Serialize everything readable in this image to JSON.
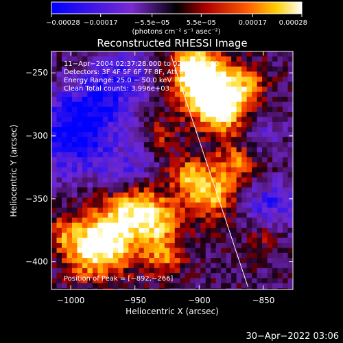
{
  "chart_data": {
    "type": "heatmap",
    "title": "Reconstructed RHESSI Image",
    "xlabel": "Heliocentric X (arcsec)",
    "ylabel": "Heliocentric Y (arcsec)",
    "xlim": [
      -1015,
      -827
    ],
    "ylim": [
      -422,
      -233
    ],
    "x_ticks": [
      {
        "value": -1000,
        "label": "−1000"
      },
      {
        "value": -950,
        "label": "−950"
      },
      {
        "value": -900,
        "label": "−900"
      },
      {
        "value": -850,
        "label": "−850"
      }
    ],
    "y_ticks": [
      {
        "value": -250,
        "label": "−250"
      },
      {
        "value": -300,
        "label": "−300"
      },
      {
        "value": -350,
        "label": "−350"
      },
      {
        "value": -400,
        "label": "−400"
      }
    ],
    "colorbar": {
      "range": [
        -0.00028,
        0.00028
      ],
      "ticks": [
        {
          "value": -0.00028,
          "label": "−0.00028"
        },
        {
          "value": -0.00017,
          "label": "−0.00017"
        },
        {
          "value": -5.5e-05,
          "label": "−5.5e−05"
        },
        {
          "value": 5.5e-05,
          "label": "5.5e−05"
        },
        {
          "value": 0.00017,
          "label": "0.00017"
        },
        {
          "value": 0.00028,
          "label": "0.00028"
        }
      ],
      "unit_label": "(photons cm⁻² s⁻¹ asec⁻²)"
    },
    "info_lines": [
      "11−Apr−2004 02:37:28.000 to 02:42:40.000",
      "Detectors: 3F 4F 5F 6F 7F 8F, Att 0",
      "Energy Range: 25.0 − 50.0 keV",
      "Clean     Total counts: 3.996e+03"
    ],
    "peak_label": "Position of Peak = [−892,−266]",
    "peak": {
      "x": -892,
      "y": -266
    },
    "limb_line": {
      "x1": -922,
      "y1": -236,
      "x2": -862,
      "y2": -420
    }
  },
  "footer": {
    "timestamp": "30−Apr−2022 03:06"
  }
}
